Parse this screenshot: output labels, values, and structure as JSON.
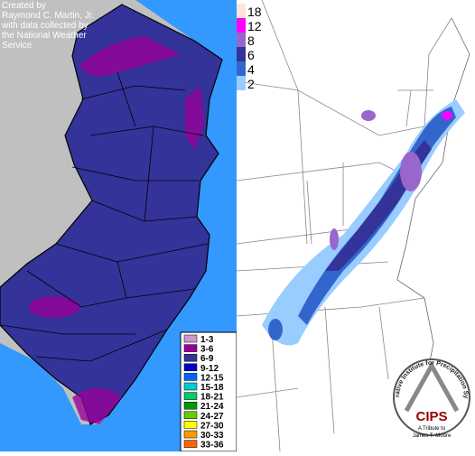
{
  "left_map": {
    "credit": [
      "Created by",
      "Raymond C. Martin, Jr.",
      "with data collected by",
      "the National Weather",
      "Service"
    ],
    "legend": [
      {
        "label": "1-3",
        "color": "#cc99cc"
      },
      {
        "label": "3-6",
        "color": "#990099"
      },
      {
        "label": "6-9",
        "color": "#333399"
      },
      {
        "label": "9-12",
        "color": "#0000cc"
      },
      {
        "label": "12-15",
        "color": "#0066ff"
      },
      {
        "label": "15-18",
        "color": "#00cccc"
      },
      {
        "label": "18-21",
        "color": "#00cc66"
      },
      {
        "label": "21-24",
        "color": "#009900"
      },
      {
        "label": "24-27",
        "color": "#66cc00"
      },
      {
        "label": "27-30",
        "color": "#ffff00"
      },
      {
        "label": "30-33",
        "color": "#ff9900"
      },
      {
        "label": "33-36",
        "color": "#ff6600"
      }
    ]
  },
  "right_map": {
    "legend": [
      {
        "value": 18,
        "color": "#ffe4d8"
      },
      {
        "value": 12,
        "color": "#ff00ff"
      },
      {
        "value": 8,
        "color": "#9966cc"
      },
      {
        "value": 6,
        "color": "#333399"
      },
      {
        "value": 4,
        "color": "#3366cc"
      },
      {
        "value": 2,
        "color": "#99ccff"
      }
    ],
    "logo": {
      "acronym": "CIPS",
      "name": "Cooperative Institute for Precipitation Systems",
      "tribute": "A Tribute to",
      "person": "James T. Moore"
    }
  }
}
